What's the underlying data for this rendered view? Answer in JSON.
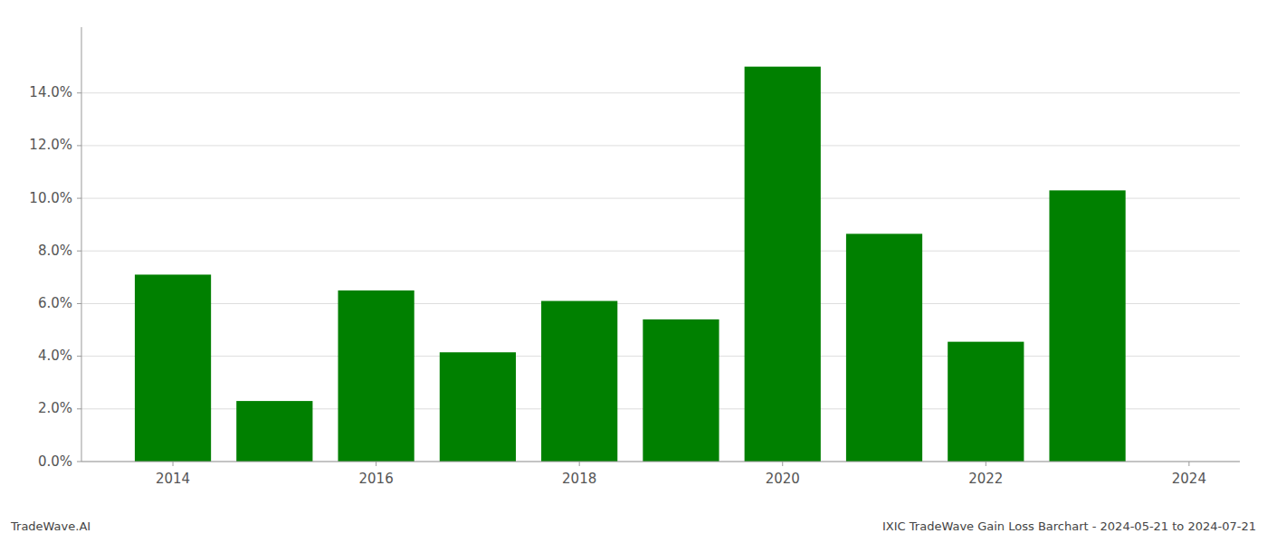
{
  "chart_data": {
    "type": "bar",
    "x": [
      2014,
      2015,
      2016,
      2017,
      2018,
      2019,
      2020,
      2021,
      2022,
      2023
    ],
    "values": [
      0.071,
      0.023,
      0.065,
      0.0415,
      0.061,
      0.054,
      0.15,
      0.0865,
      0.0455,
      0.103
    ],
    "color": "#008000",
    "xlim": [
      2013.1,
      2024.5
    ],
    "xticks": [
      2014,
      2016,
      2018,
      2020,
      2022,
      2024
    ],
    "ylim": [
      0,
      0.165
    ],
    "yticks": [
      {
        "value": 0.0,
        "label": "0.0%"
      },
      {
        "value": 0.02,
        "label": "2.0%"
      },
      {
        "value": 0.04,
        "label": "4.0%"
      },
      {
        "value": 0.06,
        "label": "6.0%"
      },
      {
        "value": 0.08,
        "label": "8.0%"
      },
      {
        "value": 0.1,
        "label": "10.0%"
      },
      {
        "value": 0.12,
        "label": "12.0%"
      },
      {
        "value": 0.14,
        "label": "14.0%"
      }
    ],
    "grid": true,
    "annotations": [
      "TradeWave.AI",
      "IXIC TradeWave Gain Loss Barchart - 2024-05-21 to 2024-07-21"
    ]
  }
}
